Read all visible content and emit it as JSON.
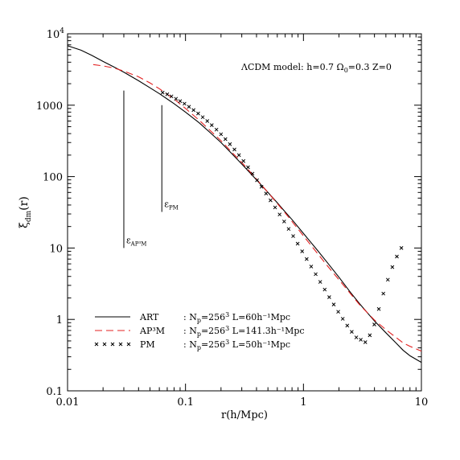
{
  "chart_data": {
    "type": "line",
    "title": "",
    "xlabel": "r(h/Mpc)",
    "ylabel": "ξ",
    "ylabel_sub": "dm",
    "ylabel_tail": "(r)",
    "xscale": "log",
    "yscale": "log",
    "xlim": [
      0.01,
      10
    ],
    "ylim": [
      0.1,
      10000
    ],
    "grid": false,
    "legend_position": "bottom-left",
    "x_ticks": [
      {
        "value": 0.01,
        "label": "0.01"
      },
      {
        "value": 0.1,
        "label": "0.1"
      },
      {
        "value": 1,
        "label": "1"
      },
      {
        "value": 10,
        "label": "10"
      }
    ],
    "y_ticks": [
      {
        "value": 0.1,
        "label": "0.1"
      },
      {
        "value": 1,
        "label": "1"
      },
      {
        "value": 10,
        "label": "10"
      },
      {
        "value": 100,
        "label": "100"
      },
      {
        "value": 1000,
        "label": "1000"
      },
      {
        "value": 10000,
        "label": "10",
        "sup": "4"
      }
    ],
    "annotation": {
      "pre": "ΛCDM model: h=0.7 Ω",
      "sub": "0",
      "post": "=0.3 Z=0"
    },
    "series": [
      {
        "name": "ART",
        "legend_text": ": N",
        "legend_sub": "p",
        "legend_mid": "=256",
        "legend_sup": "3",
        "legend_post": " L=60h⁻¹Mpc",
        "style": "solid",
        "color": "#000000",
        "x": [
          0.01,
          0.013,
          0.016,
          0.02,
          0.025,
          0.03,
          0.04,
          0.05,
          0.06,
          0.07,
          0.08,
          0.1,
          0.13,
          0.16,
          0.2,
          0.25,
          0.3,
          0.4,
          0.5,
          0.6,
          0.7,
          0.8,
          1.0,
          1.3,
          1.6,
          2.0,
          2.5,
          3.0,
          4.0,
          5.0,
          6.0,
          7.0,
          8.0,
          10.0
        ],
        "y": [
          6800,
          5900,
          5000,
          4100,
          3400,
          2900,
          2200,
          1750,
          1450,
          1220,
          1050,
          800,
          570,
          420,
          300,
          205,
          150,
          90,
          60,
          43,
          32,
          25,
          16,
          9.5,
          6.2,
          3.9,
          2.4,
          1.65,
          0.95,
          0.65,
          0.48,
          0.37,
          0.31,
          0.25
        ]
      },
      {
        "name": "AP³M",
        "legend_text": ": N",
        "legend_sub": "p",
        "legend_mid": "=256",
        "legend_sup": "3",
        "legend_post": " L=141.3h⁻¹Mpc",
        "style": "dashed",
        "color": "#e32020",
        "x": [
          0.0165,
          0.02,
          0.025,
          0.03,
          0.04,
          0.05,
          0.06,
          0.07,
          0.08,
          0.1,
          0.13,
          0.16,
          0.2,
          0.25,
          0.3,
          0.4,
          0.5,
          0.6,
          0.7,
          0.8,
          1.0,
          1.3,
          1.6,
          2.0,
          2.5,
          3.0,
          4.0,
          5.0,
          6.0,
          7.0,
          8.0,
          10.0
        ],
        "y": [
          3700,
          3550,
          3300,
          3000,
          2500,
          2050,
          1700,
          1420,
          1220,
          900,
          620,
          450,
          318,
          215,
          158,
          92,
          60,
          42,
          31,
          23.5,
          14.8,
          8.6,
          5.6,
          3.6,
          2.3,
          1.6,
          0.98,
          0.72,
          0.57,
          0.47,
          0.42,
          0.36
        ]
      },
      {
        "name": "PM",
        "legend_text": ": N",
        "legend_sub": "p",
        "legend_mid": "=256",
        "legend_sup": "3",
        "legend_post": " L=50h⁻¹Mpc",
        "style": "markers-x",
        "color": "#000000",
        "x": [
          0.064,
          0.07,
          0.076,
          0.083,
          0.09,
          0.098,
          0.107,
          0.117,
          0.128,
          0.14,
          0.153,
          0.167,
          0.183,
          0.2,
          0.218,
          0.238,
          0.26,
          0.284,
          0.31,
          0.339,
          0.37,
          0.404,
          0.441,
          0.482,
          0.526,
          0.575,
          0.628,
          0.686,
          0.749,
          0.818,
          0.893,
          0.975,
          1.065,
          1.163,
          1.27,
          1.387,
          1.515,
          1.654,
          1.806,
          1.972,
          2.154,
          2.352,
          2.568,
          2.805,
          3.063,
          3.345,
          3.653,
          3.989,
          4.356,
          4.757,
          5.195,
          5.673,
          6.196,
          6.766
        ],
        "y": [
          1500,
          1420,
          1330,
          1230,
          1140,
          1050,
          950,
          855,
          765,
          680,
          600,
          525,
          455,
          392,
          335,
          285,
          240,
          200,
          165,
          135,
          110,
          89,
          72,
          58,
          46.5,
          37,
          29.5,
          23.5,
          18.5,
          14.7,
          11.5,
          9.0,
          7.0,
          5.5,
          4.3,
          3.35,
          2.62,
          2.05,
          1.62,
          1.28,
          1.02,
          0.82,
          0.67,
          0.56,
          0.52,
          0.48,
          0.6,
          0.85,
          1.4,
          2.3,
          3.6,
          5.4,
          7.6,
          10
        ]
      }
    ],
    "softening_bars": [
      {
        "label": "ε",
        "sub": "AP³M",
        "x": 0.03,
        "y_low": 10,
        "y_high": 1600
      },
      {
        "label": "ε",
        "sub": "PM",
        "x": 0.063,
        "y_low": 32,
        "y_high": 1000
      }
    ]
  }
}
